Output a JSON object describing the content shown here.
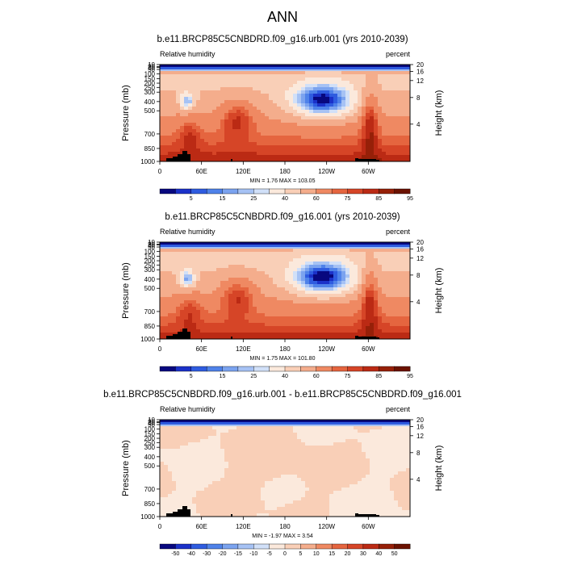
{
  "page_title": "ANN",
  "chart_data": [
    {
      "type": "heatmap",
      "title": "b.e11.BRCP85C5CNBDRD.f09_g16.urb.001 (yrs 2010-2039)",
      "left_label": "Relative humidity",
      "right_label": "percent",
      "ylabel": "Pressure (mb)",
      "ylabel_right": "Height (km)",
      "x_ticks": [
        "0",
        "60E",
        "120E",
        "180",
        "120W",
        "60W"
      ],
      "y_ticks": [
        "1000",
        "850",
        "700",
        "500",
        "400",
        "300",
        "250",
        "200",
        "150",
        "100",
        "50",
        "30",
        "20",
        "10"
      ],
      "y_ticks_right": [
        "4",
        "8",
        "12",
        "16",
        "20"
      ],
      "minmax": "MIN =   1.76  MAX = 103.05",
      "colorbar_labels": [
        "5",
        "15",
        "25",
        "40",
        "60",
        "75",
        "85",
        "95"
      ],
      "colorbar_colors": [
        "#08087f",
        "#1b31c9",
        "#2f5ce0",
        "#4f82e9",
        "#7ba3ef",
        "#a6c2f4",
        "#d1e0f8",
        "#fbe9dc",
        "#f9cfb7",
        "#f4ad8c",
        "#ef8962",
        "#e5653f",
        "#d64527",
        "#bb2a14",
        "#962008",
        "#6b1200"
      ],
      "levels": [
        2,
        5,
        10,
        15,
        20,
        25,
        30,
        40,
        50,
        60,
        70,
        75,
        80,
        85,
        90,
        95
      ]
    },
    {
      "type": "heatmap",
      "title": "b.e11.BRCP85C5CNBDRD.f09_g16.001 (yrs 2010-2039)",
      "left_label": "Relative humidity",
      "right_label": "percent",
      "ylabel": "Pressure (mb)",
      "ylabel_right": "Height (km)",
      "x_ticks": [
        "0",
        "60E",
        "120E",
        "180",
        "120W",
        "60W"
      ],
      "y_ticks": [
        "1000",
        "850",
        "700",
        "500",
        "400",
        "300",
        "250",
        "200",
        "150",
        "100",
        "50",
        "30",
        "20",
        "10"
      ],
      "y_ticks_right": [
        "4",
        "8",
        "12",
        "16",
        "20"
      ],
      "minmax": "MIN =   1.75  MAX = 101.80",
      "colorbar_labels": [
        "5",
        "15",
        "25",
        "40",
        "60",
        "75",
        "85",
        "95"
      ],
      "colorbar_colors": [
        "#08087f",
        "#1b31c9",
        "#2f5ce0",
        "#4f82e9",
        "#7ba3ef",
        "#a6c2f4",
        "#d1e0f8",
        "#fbe9dc",
        "#f9cfb7",
        "#f4ad8c",
        "#ef8962",
        "#e5653f",
        "#d64527",
        "#bb2a14",
        "#962008",
        "#6b1200"
      ],
      "levels": [
        2,
        5,
        10,
        15,
        20,
        25,
        30,
        40,
        50,
        60,
        70,
        75,
        80,
        85,
        90,
        95
      ]
    },
    {
      "type": "heatmap",
      "title": "b.e11.BRCP85C5CNBDRD.f09_g16.urb.001 - b.e11.BRCP85C5CNBDRD.f09_g16.001",
      "left_label": "Relative humidity",
      "right_label": "percent",
      "ylabel": "Pressure (mb)",
      "ylabel_right": "Height (km)",
      "x_ticks": [
        "0",
        "60E",
        "120E",
        "180",
        "120W",
        "60W"
      ],
      "y_ticks": [
        "1000",
        "850",
        "700",
        "500",
        "400",
        "300",
        "250",
        "200",
        "150",
        "100",
        "50",
        "30",
        "20",
        "10"
      ],
      "y_ticks_right": [
        "4",
        "8",
        "12",
        "16",
        "20"
      ],
      "minmax": "MIN =  -1.97  MAX =   3.54",
      "colorbar_labels": [
        "-50",
        "-40",
        "-30",
        "-20",
        "-15",
        "-10",
        "-5",
        "0",
        "5",
        "10",
        "15",
        "20",
        "30",
        "40",
        "50"
      ],
      "colorbar_colors": [
        "#08087f",
        "#1b31c9",
        "#2f5ce0",
        "#4f82e9",
        "#7ba3ef",
        "#a6c2f4",
        "#d1e0f8",
        "#fbe9dc",
        "#f9cfb7",
        "#f4ad8c",
        "#ef8962",
        "#e5653f",
        "#d64527",
        "#bb2a14",
        "#962008",
        "#6b1200"
      ],
      "levels": [
        -50,
        -40,
        -30,
        -20,
        -15,
        -10,
        -5,
        0,
        5,
        10,
        15,
        20,
        30,
        40,
        50
      ]
    }
  ]
}
